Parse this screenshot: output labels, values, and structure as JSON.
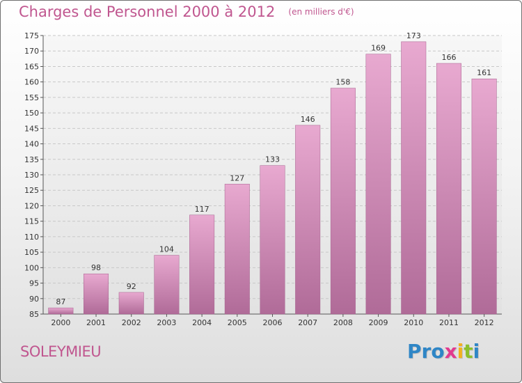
{
  "header": {
    "title": "Charges de Personnel 2000 à 2012",
    "subtitle": "(en milliers d'€)"
  },
  "footer": {
    "town": "SOLEYMIEU",
    "brand_letters": [
      {
        "char": "P",
        "color": "#2f86c6"
      },
      {
        "char": "r",
        "color": "#2f86c6"
      },
      {
        "char": "o",
        "color": "#2f86c6"
      },
      {
        "char": "x",
        "color": "#e23a8f"
      },
      {
        "char": "i",
        "color": "#f2b11f"
      },
      {
        "char": "t",
        "color": "#8cbf2c"
      },
      {
        "char": "i",
        "color": "#2f86c6"
      }
    ]
  },
  "colors": {
    "accent": "#c0568f",
    "bar_top": "#e8a9d0",
    "bar_bottom": "#b06b98"
  },
  "chart_data": {
    "type": "bar",
    "categories": [
      "2000",
      "2001",
      "2002",
      "2003",
      "2004",
      "2005",
      "2006",
      "2007",
      "2008",
      "2009",
      "2010",
      "2011",
      "2012"
    ],
    "values": [
      87,
      98,
      92,
      104,
      117,
      127,
      133,
      146,
      158,
      169,
      173,
      166,
      161
    ],
    "ylim": [
      85,
      175
    ],
    "yticks": [
      85,
      90,
      95,
      100,
      105,
      110,
      115,
      120,
      125,
      130,
      135,
      140,
      145,
      150,
      155,
      160,
      165,
      170,
      175
    ],
    "grid": true,
    "data_labels": true
  }
}
